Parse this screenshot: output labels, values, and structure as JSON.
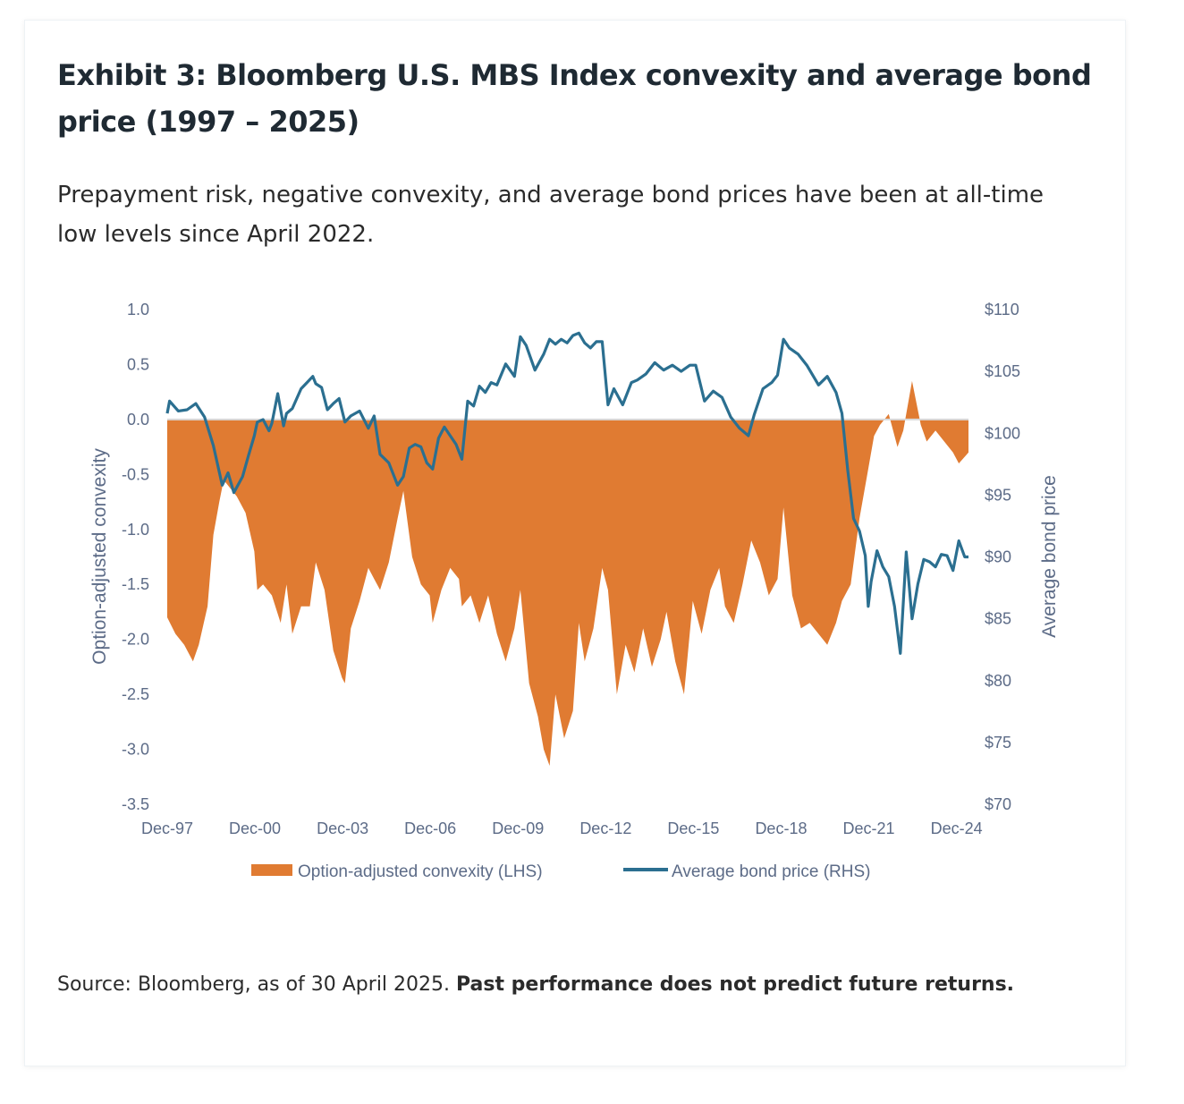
{
  "header": {
    "title": "Exhibit 3: Bloomberg U.S. MBS Index convexity and average bond price (1997 – 2025)",
    "subtitle": "Prepayment risk, negative convexity, and average bond prices have been at all-time low levels since April 2022."
  },
  "footer": {
    "source_text": "Source: Bloomberg, as of 30 April 2025. ",
    "disclaimer": "Past performance does not predict future returns."
  },
  "colors": {
    "convexity": "#e07b32",
    "price": "#2b6f90",
    "axis_text": "#5c6b87",
    "zero_line": "#d9d9d9"
  },
  "chart_data": {
    "type": "area",
    "xlabel": "",
    "ylabel": "Option-adjusted convexity",
    "y2label": "Average bond price",
    "ylim": [
      -3.5,
      1.0
    ],
    "y2lim": [
      70,
      110
    ],
    "y_ticks": [
      "1.0",
      "0.5",
      "0.0",
      "-0.5",
      "-1.0",
      "-1.5",
      "-2.0",
      "-2.5",
      "-3.0",
      "-3.5"
    ],
    "y2_ticks": [
      "$110",
      "$105",
      "$100",
      "$95",
      "$90",
      "$85",
      "$80",
      "$75",
      "$70"
    ],
    "x_ticks": [
      "Dec-97",
      "Dec-00",
      "Dec-03",
      "Dec-06",
      "Dec-09",
      "Dec-12",
      "Dec-15",
      "Dec-18",
      "Dec-21",
      "Dec-24"
    ],
    "xlim": [
      1997.92,
      2025.33
    ],
    "legend_position": "bottom",
    "series": [
      {
        "name": "Option-adjusted convexity (LHS)",
        "type": "area",
        "axis": "left",
        "x": [
          1997.92,
          1998.2,
          1998.5,
          1998.8,
          1999.0,
          1999.3,
          1999.5,
          1999.7,
          1999.85,
          2000.0,
          2000.3,
          2000.6,
          2000.9,
          2001.0,
          2001.2,
          2001.5,
          2001.8,
          2002.0,
          2002.2,
          2002.5,
          2002.8,
          2003.0,
          2003.3,
          2003.6,
          2003.9,
          2004.0,
          2004.2,
          2004.5,
          2004.8,
          2005.0,
          2005.2,
          2005.5,
          2005.8,
          2006.0,
          2006.3,
          2006.6,
          2006.9,
          2007.0,
          2007.3,
          2007.6,
          2007.9,
          2008.0,
          2008.3,
          2008.6,
          2008.9,
          2009.2,
          2009.5,
          2009.8,
          2010.0,
          2010.3,
          2010.6,
          2010.8,
          2011.0,
          2011.2,
          2011.5,
          2011.8,
          2012.0,
          2012.2,
          2012.5,
          2012.8,
          2013.0,
          2013.3,
          2013.6,
          2013.9,
          2014.2,
          2014.5,
          2014.8,
          2015.0,
          2015.3,
          2015.6,
          2015.9,
          2016.2,
          2016.5,
          2016.8,
          2017.0,
          2017.3,
          2017.6,
          2017.9,
          2018.2,
          2018.5,
          2018.8,
          2019.0,
          2019.3,
          2019.6,
          2019.9,
          2020.2,
          2020.5,
          2020.8,
          2021.0,
          2021.3,
          2021.6,
          2021.9,
          2022.1,
          2022.3,
          2022.6,
          2022.9,
          2023.1,
          2023.4,
          2023.7,
          2023.9,
          2024.2,
          2024.5,
          2024.8,
          2025.0,
          2025.33
        ],
        "values": [
          -1.8,
          -1.95,
          -2.05,
          -2.2,
          -2.05,
          -1.7,
          -1.05,
          -0.75,
          -0.55,
          -0.6,
          -0.7,
          -0.85,
          -1.2,
          -1.55,
          -1.5,
          -1.6,
          -1.85,
          -1.5,
          -1.95,
          -1.7,
          -1.7,
          -1.3,
          -1.55,
          -2.1,
          -2.35,
          -2.4,
          -1.9,
          -1.65,
          -1.35,
          -1.45,
          -1.55,
          -1.3,
          -0.9,
          -0.65,
          -1.25,
          -1.5,
          -1.6,
          -1.85,
          -1.55,
          -1.35,
          -1.45,
          -1.7,
          -1.6,
          -1.85,
          -1.6,
          -1.95,
          -2.2,
          -1.9,
          -1.55,
          -2.4,
          -2.7,
          -3.0,
          -3.15,
          -2.5,
          -2.9,
          -2.65,
          -1.85,
          -2.2,
          -1.9,
          -1.35,
          -1.55,
          -2.5,
          -2.05,
          -2.3,
          -1.9,
          -2.25,
          -2.0,
          -1.75,
          -2.2,
          -2.5,
          -1.65,
          -1.95,
          -1.55,
          -1.35,
          -1.7,
          -1.85,
          -1.5,
          -1.1,
          -1.3,
          -1.6,
          -1.45,
          -0.8,
          -1.6,
          -1.9,
          -1.85,
          -1.95,
          -2.05,
          -1.85,
          -1.65,
          -1.5,
          -0.9,
          -0.45,
          -0.15,
          -0.05,
          0.05,
          -0.25,
          -0.1,
          0.35,
          -0.05,
          -0.2,
          -0.1,
          -0.2,
          -0.3,
          -0.4,
          -0.3
        ]
      },
      {
        "name": "Average bond price (RHS)",
        "type": "line",
        "axis": "right",
        "x": [
          1997.92,
          1998.0,
          1998.3,
          1998.6,
          1998.9,
          1999.2,
          1999.5,
          1999.8,
          2000.0,
          2000.2,
          2000.5,
          2000.7,
          2000.9,
          2001.0,
          2001.2,
          2001.4,
          2001.5,
          2001.7,
          2001.9,
          2002.0,
          2002.2,
          2002.5,
          2002.7,
          2002.9,
          2003.0,
          2003.2,
          2003.4,
          2003.6,
          2003.8,
          2004.0,
          2004.2,
          2004.5,
          2004.8,
          2005.0,
          2005.2,
          2005.5,
          2005.8,
          2006.0,
          2006.2,
          2006.4,
          2006.6,
          2006.8,
          2007.0,
          2007.2,
          2007.4,
          2007.6,
          2007.8,
          2008.0,
          2008.2,
          2008.4,
          2008.6,
          2008.8,
          2009.0,
          2009.2,
          2009.5,
          2009.8,
          2010.0,
          2010.2,
          2010.5,
          2010.8,
          2011.0,
          2011.2,
          2011.4,
          2011.6,
          2011.8,
          2012.0,
          2012.2,
          2012.4,
          2012.6,
          2012.8,
          2013.0,
          2013.2,
          2013.5,
          2013.8,
          2014.0,
          2014.3,
          2014.6,
          2014.9,
          2015.2,
          2015.5,
          2015.8,
          2016.0,
          2016.3,
          2016.6,
          2016.9,
          2017.2,
          2017.5,
          2017.8,
          2018.0,
          2018.3,
          2018.6,
          2018.8,
          2019.0,
          2019.2,
          2019.5,
          2019.8,
          2020.0,
          2020.2,
          2020.5,
          2020.8,
          2021.0,
          2021.2,
          2021.4,
          2021.6,
          2021.8,
          2021.9,
          2022.0,
          2022.2,
          2022.4,
          2022.6,
          2022.8,
          2023.0,
          2023.2,
          2023.4,
          2023.6,
          2023.8,
          2024.0,
          2024.2,
          2024.4,
          2024.6,
          2024.8,
          2025.0,
          2025.2,
          2025.33
        ],
        "values": [
          101.6,
          102.6,
          101.8,
          101.9,
          102.4,
          101.3,
          99.0,
          95.8,
          96.8,
          95.2,
          96.5,
          98.2,
          99.8,
          100.9,
          101.1,
          100.2,
          100.8,
          103.2,
          100.6,
          101.6,
          102.0,
          103.6,
          104.1,
          104.6,
          104.0,
          103.7,
          101.9,
          102.4,
          102.8,
          100.9,
          101.4,
          101.8,
          100.4,
          101.4,
          98.3,
          97.6,
          95.8,
          96.5,
          98.8,
          99.1,
          98.9,
          97.6,
          97.1,
          99.6,
          100.5,
          99.8,
          99.1,
          97.9,
          102.6,
          102.2,
          103.8,
          103.3,
          104.1,
          103.9,
          105.6,
          104.6,
          107.8,
          107.1,
          105.1,
          106.4,
          107.6,
          107.2,
          107.6,
          107.3,
          107.9,
          108.1,
          107.3,
          106.9,
          107.4,
          107.4,
          102.3,
          103.6,
          102.3,
          104.1,
          104.3,
          104.8,
          105.7,
          105.1,
          105.5,
          105.0,
          105.5,
          105.5,
          102.6,
          103.4,
          102.9,
          101.3,
          100.4,
          99.8,
          101.5,
          103.6,
          104.1,
          104.7,
          107.6,
          106.9,
          106.4,
          105.5,
          104.7,
          103.9,
          104.6,
          103.3,
          101.6,
          97.0,
          93.1,
          92.1,
          90.1,
          86.0,
          88.0,
          90.5,
          89.2,
          88.4,
          86.0,
          82.2,
          90.4,
          85.0,
          87.8,
          89.8,
          89.6,
          89.2,
          90.2,
          90.1,
          88.9,
          91.3,
          90.0,
          90.0
        ]
      }
    ]
  }
}
